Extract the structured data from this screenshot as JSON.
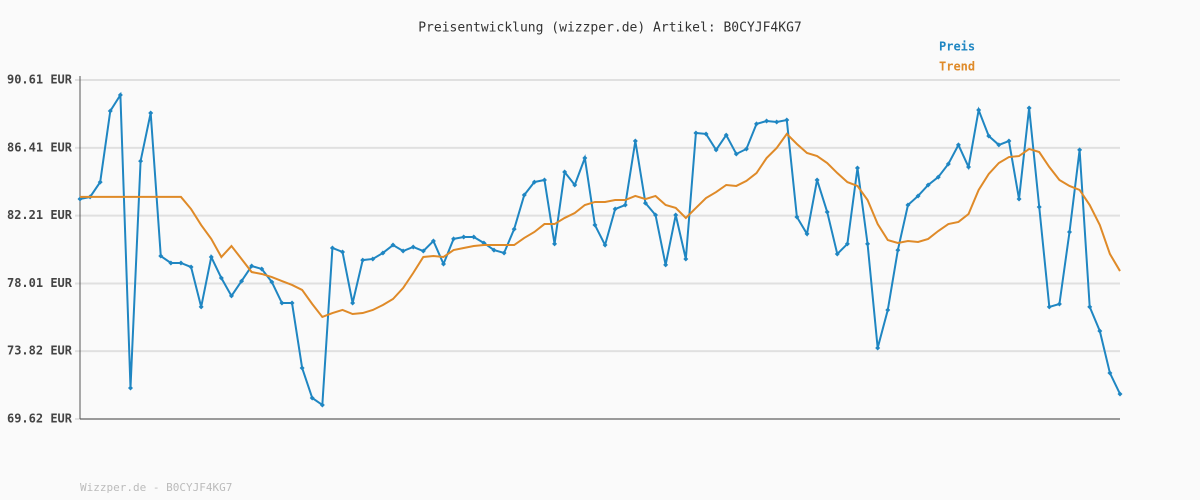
{
  "chart_data": {
    "type": "line",
    "title": "Preisentwicklung (wizzper.de) Artikel: B0CYJF4KG7",
    "footer": "Wizzper.de - B0CYJF4KG7",
    "ylim": [
      69.62,
      90.61
    ],
    "yticks": [
      {
        "value": 69.62,
        "label": "69.62 EUR"
      },
      {
        "value": 73.82,
        "label": "73.82 EUR"
      },
      {
        "value": 78.01,
        "label": "78.01 EUR"
      },
      {
        "value": 82.21,
        "label": "82.21 EUR"
      },
      {
        "value": 86.41,
        "label": "86.41 EUR"
      },
      {
        "value": 90.61,
        "label": "90.61 EUR"
      }
    ],
    "grid": true,
    "legend": "top-right",
    "series": [
      {
        "name": "Preis",
        "color": "#1f86c2",
        "markers": true,
        "values": [
          83.24,
          83.37,
          84.29,
          88.69,
          89.68,
          71.54,
          85.59,
          88.57,
          79.71,
          79.28,
          79.28,
          79.03,
          76.56,
          79.65,
          78.35,
          77.24,
          78.16,
          79.09,
          78.91,
          78.1,
          76.8,
          76.8,
          72.78,
          70.92,
          70.49,
          80.21,
          79.96,
          76.8,
          79.46,
          79.53,
          79.9,
          80.39,
          80.02,
          80.27,
          80.02,
          80.64,
          79.22,
          80.77,
          80.89,
          80.89,
          80.52,
          80.08,
          79.9,
          81.38,
          83.49,
          84.29,
          84.42,
          80.46,
          84.91,
          84.11,
          85.78,
          81.63,
          80.39,
          82.62,
          82.87,
          86.83,
          82.99,
          82.25,
          79.16,
          82.25,
          79.53,
          87.33,
          87.27,
          86.28,
          87.2,
          86.03,
          86.34,
          87.89,
          88.07,
          88.01,
          88.13,
          82.13,
          81.08,
          84.42,
          82.44,
          79.84,
          80.46,
          85.16,
          80.46,
          74.02,
          76.37,
          80.08,
          82.87,
          83.43,
          84.11,
          84.6,
          85.41,
          86.59,
          85.22,
          88.75,
          87.14,
          86.59,
          86.83,
          83.24,
          88.88,
          82.75,
          76.56,
          76.74,
          81.2,
          86.28,
          76.56,
          75.07,
          72.47,
          71.17
        ]
      },
      {
        "name": "Trend",
        "color": "#df8a28",
        "markers": false,
        "values": [
          83.37,
          83.37,
          83.37,
          83.37,
          83.37,
          83.37,
          83.37,
          83.37,
          83.37,
          83.37,
          83.37,
          82.62,
          81.63,
          80.77,
          79.65,
          80.33,
          79.53,
          78.72,
          78.6,
          78.41,
          78.16,
          77.92,
          77.61,
          76.74,
          75.94,
          76.18,
          76.37,
          76.12,
          76.18,
          76.37,
          76.68,
          77.05,
          77.73,
          78.66,
          79.65,
          79.71,
          79.65,
          80.08,
          80.21,
          80.33,
          80.39,
          80.39,
          80.39,
          80.39,
          80.83,
          81.2,
          81.69,
          81.69,
          82.07,
          82.37,
          82.87,
          83.06,
          83.06,
          83.18,
          83.18,
          83.43,
          83.24,
          83.43,
          82.87,
          82.69,
          82.07,
          82.69,
          83.3,
          83.67,
          84.11,
          84.05,
          84.36,
          84.85,
          85.78,
          86.4,
          87.27,
          86.65,
          86.09,
          85.9,
          85.47,
          84.85,
          84.29,
          84.05,
          83.18,
          81.69,
          80.7,
          80.52,
          80.64,
          80.58,
          80.77,
          81.26,
          81.69,
          81.82,
          82.31,
          83.8,
          84.79,
          85.47,
          85.84,
          85.9,
          86.34,
          86.15,
          85.22,
          84.42,
          84.05,
          83.8,
          82.87,
          81.63,
          79.84,
          78.78
        ]
      }
    ]
  }
}
